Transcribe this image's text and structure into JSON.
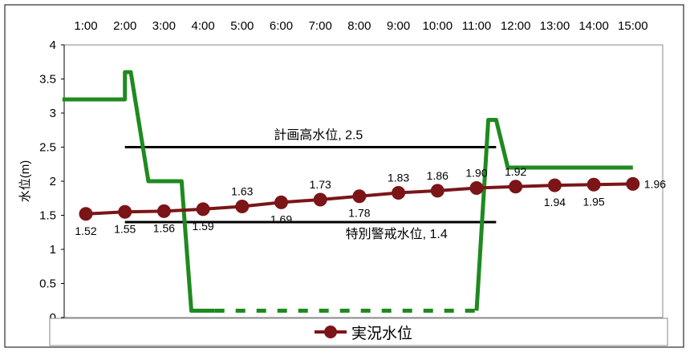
{
  "chart_data": {
    "type": "line",
    "categories": [
      "1:00",
      "2:00",
      "3:00",
      "4:00",
      "5:00",
      "6:00",
      "7:00",
      "8:00",
      "9:00",
      "10:00",
      "11:00",
      "12:00",
      "13:00",
      "14:00",
      "15:00"
    ],
    "ylabel": "水位(m)",
    "ylim": [
      0,
      4
    ],
    "yticks": [
      "0",
      "0.5",
      "1",
      "1.5",
      "2",
      "2.5",
      "3",
      "3.5",
      "4"
    ],
    "legend_position": "bottom",
    "series": [
      {
        "name": "実況水位",
        "color": "#7b1518",
        "values": [
          1.52,
          1.55,
          1.56,
          1.59,
          1.63,
          1.69,
          1.73,
          1.78,
          1.83,
          1.86,
          1.9,
          1.92,
          1.94,
          1.95,
          1.96
        ],
        "labels": [
          "1.52",
          "1.55",
          "1.56",
          "1.59",
          "1.63",
          "1.69",
          "1.73",
          "1.78",
          "1.83",
          "1.86",
          "1.90",
          "1.92",
          "1.94",
          "1.95",
          "1.96"
        ]
      }
    ],
    "reference_lines": [
      {
        "label": "計画高水位, 2.5",
        "value": 2.5,
        "x_from": 1.0,
        "x_to": 10.5,
        "color": "#000000"
      },
      {
        "label": "特別警戒水位, 1.4",
        "value": 1.4,
        "x_from": 1.0,
        "x_to": 10.5,
        "color": "#000000"
      }
    ],
    "green_line": {
      "color": "#1f8a1f",
      "points": [
        [
          -0.6,
          3.2
        ],
        [
          1.0,
          3.2
        ],
        [
          1.0,
          3.6
        ],
        [
          1.15,
          3.6
        ],
        [
          1.6,
          2.0
        ],
        [
          2.45,
          2.0
        ],
        [
          2.7,
          0.1
        ],
        [
          3.3,
          0.1
        ]
      ],
      "dashed_points": [
        [
          3.3,
          0.1
        ],
        [
          10.0,
          0.1
        ]
      ],
      "points_after": [
        [
          10.0,
          0.1
        ],
        [
          10.3,
          2.9
        ],
        [
          10.5,
          2.9
        ],
        [
          10.8,
          2.2
        ],
        [
          14.0,
          2.2
        ]
      ]
    }
  }
}
